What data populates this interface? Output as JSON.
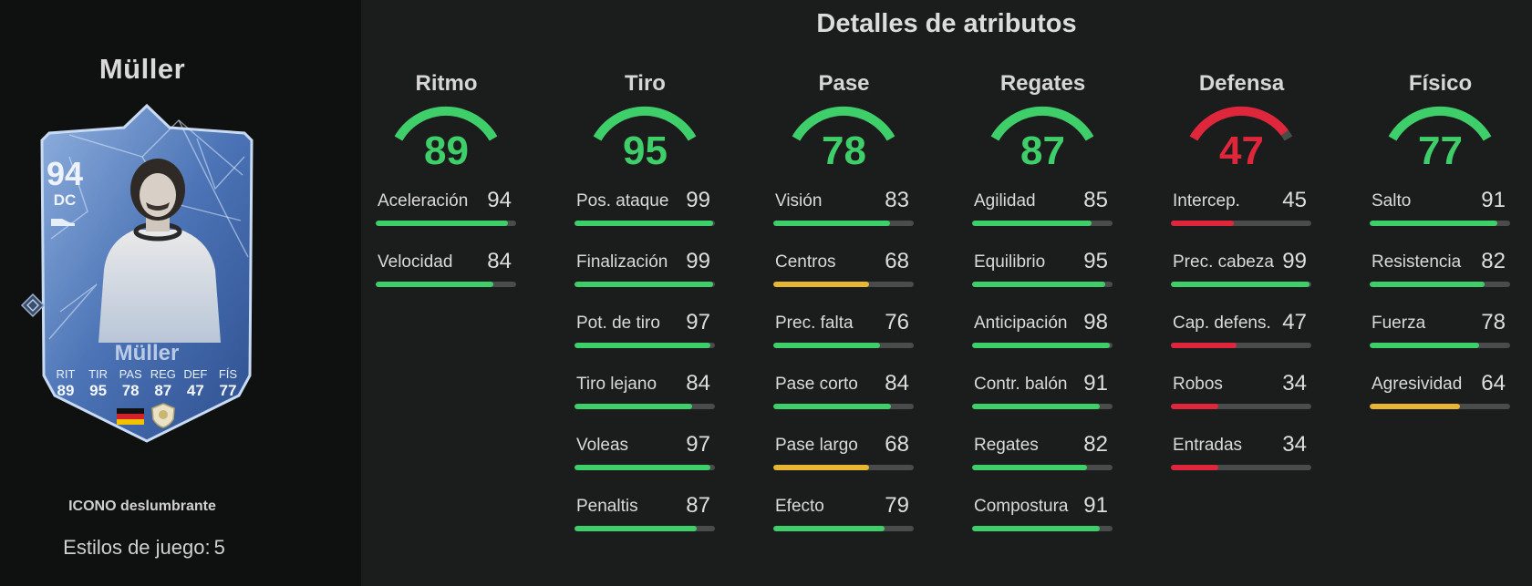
{
  "player": {
    "name": "Müller",
    "card_type": "ICONO deslumbrante",
    "playstyles_label": "Estilos de juego:",
    "playstyles_count": "5"
  },
  "card": {
    "rating": "94",
    "position": "DC",
    "name": "Müller",
    "labels": [
      "RIT",
      "TIR",
      "PAS",
      "REG",
      "DEF",
      "FÍS"
    ],
    "values": [
      "89",
      "95",
      "78",
      "87",
      "47",
      "77"
    ],
    "nation": "germany-flag-icon",
    "club": "icon-badge-icon"
  },
  "title": "Detalles de atributos",
  "colors": {
    "green": "#3ecf6a",
    "yellow": "#e8b633",
    "red": "#e0263a",
    "track": "#4a4b4b"
  },
  "categories": [
    {
      "name": "Ritmo",
      "value": "89",
      "level": "green",
      "stats": [
        {
          "label": "Aceleración",
          "value": "94",
          "level": "green"
        },
        {
          "label": "Velocidad",
          "value": "84",
          "level": "green"
        }
      ]
    },
    {
      "name": "Tiro",
      "value": "95",
      "level": "green",
      "stats": [
        {
          "label": "Pos. ataque",
          "value": "99",
          "level": "green"
        },
        {
          "label": "Finalización",
          "value": "99",
          "level": "green"
        },
        {
          "label": "Pot. de tiro",
          "value": "97",
          "level": "green"
        },
        {
          "label": "Tiro lejano",
          "value": "84",
          "level": "green"
        },
        {
          "label": "Voleas",
          "value": "97",
          "level": "green"
        },
        {
          "label": "Penaltis",
          "value": "87",
          "level": "green"
        }
      ]
    },
    {
      "name": "Pase",
      "value": "78",
      "level": "green",
      "stats": [
        {
          "label": "Visión",
          "value": "83",
          "level": "green"
        },
        {
          "label": "Centros",
          "value": "68",
          "level": "yellow"
        },
        {
          "label": "Prec. falta",
          "value": "76",
          "level": "green"
        },
        {
          "label": "Pase corto",
          "value": "84",
          "level": "green"
        },
        {
          "label": "Pase largo",
          "value": "68",
          "level": "yellow"
        },
        {
          "label": "Efecto",
          "value": "79",
          "level": "green"
        }
      ]
    },
    {
      "name": "Regates",
      "value": "87",
      "level": "green",
      "stats": [
        {
          "label": "Agilidad",
          "value": "85",
          "level": "green"
        },
        {
          "label": "Equilibrio",
          "value": "95",
          "level": "green"
        },
        {
          "label": "Anticipación",
          "value": "98",
          "level": "green"
        },
        {
          "label": "Contr. balón",
          "value": "91",
          "level": "green"
        },
        {
          "label": "Regates",
          "value": "82",
          "level": "green"
        },
        {
          "label": "Compostura",
          "value": "91",
          "level": "green"
        }
      ]
    },
    {
      "name": "Defensa",
      "value": "47",
      "level": "red",
      "stats": [
        {
          "label": "Intercep.",
          "value": "45",
          "level": "red"
        },
        {
          "label": "Prec. cabeza",
          "value": "99",
          "level": "green"
        },
        {
          "label": "Cap. defens.",
          "value": "47",
          "level": "red"
        },
        {
          "label": "Robos",
          "value": "34",
          "level": "red"
        },
        {
          "label": "Entradas",
          "value": "34",
          "level": "red"
        }
      ]
    },
    {
      "name": "Físico",
      "value": "77",
      "level": "green",
      "stats": [
        {
          "label": "Salto",
          "value": "91",
          "level": "green"
        },
        {
          "label": "Resistencia",
          "value": "82",
          "level": "green"
        },
        {
          "label": "Fuerza",
          "value": "78",
          "level": "green"
        },
        {
          "label": "Agresividad",
          "value": "64",
          "level": "yellow"
        }
      ]
    }
  ]
}
